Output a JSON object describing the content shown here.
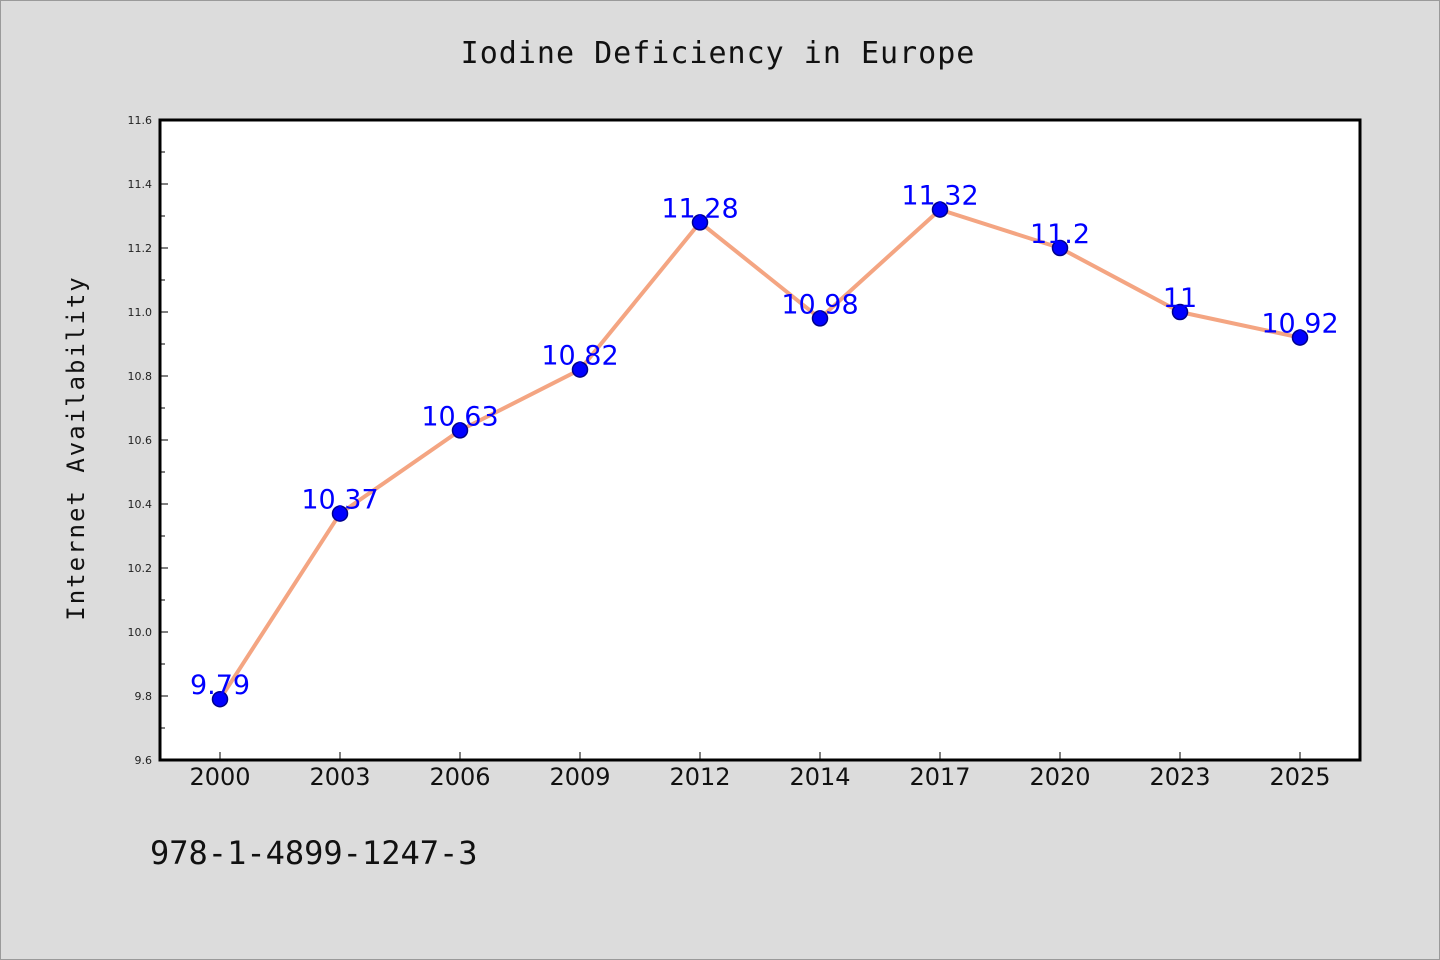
{
  "chart_data": {
    "type": "line",
    "title": "Iodine Deficiency in Europe",
    "xlabel": "",
    "ylabel": "Internet Availability",
    "categories": [
      "2000",
      "2003",
      "2006",
      "2009",
      "2012",
      "2014",
      "2017",
      "2020",
      "2023",
      "2025"
    ],
    "series": [
      {
        "values": [
          9.79,
          10.37,
          10.63,
          10.82,
          11.28,
          10.98,
          11.32,
          11.2,
          11,
          10.92
        ],
        "data_labels": [
          "9.79",
          "10.37",
          "10.63",
          "10.82",
          "11.28",
          "10.98",
          "11.32",
          "11.2",
          "11",
          "10.92"
        ]
      }
    ],
    "ylim": [
      9.6,
      11.6
    ],
    "yticks": [
      "9.6",
      "9.8",
      "10.0",
      "10.2",
      "10.4",
      "10.6",
      "10.8",
      "11.0",
      "11.2",
      "11.4",
      "11.6"
    ],
    "grid": false,
    "legend": "none",
    "footer": "978-1-4899-1247-3",
    "colors": {
      "line": "#f4a582",
      "marker_fill": "#0000ff",
      "marker_edge": "#00008b",
      "data_label": "#0000ff",
      "plot_background": "#ffffff",
      "figure_background": "#dcdcdc"
    }
  }
}
